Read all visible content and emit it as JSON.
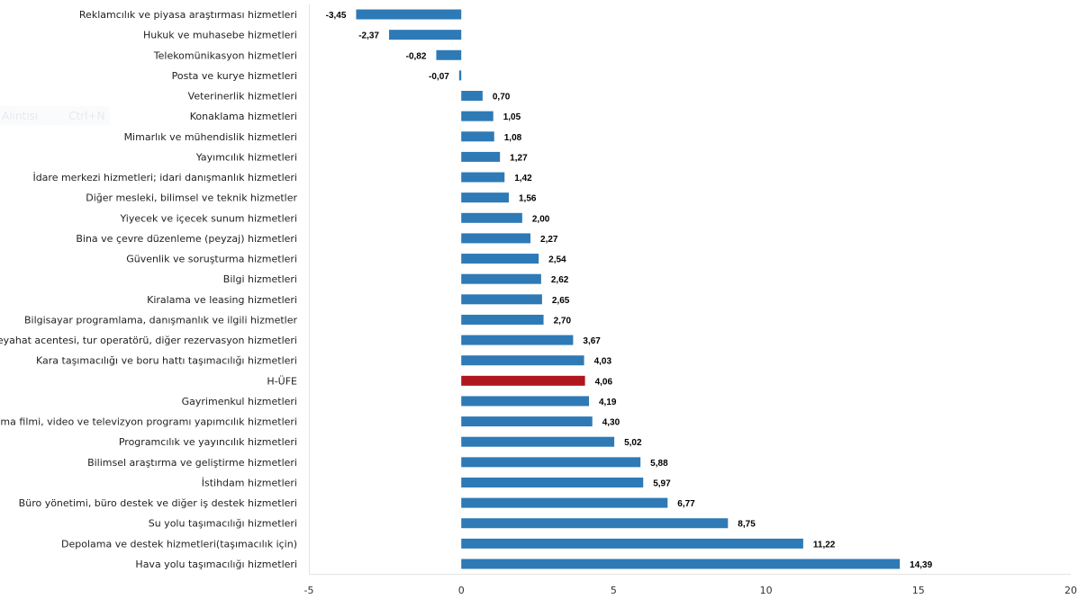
{
  "overlay": {
    "label": "Alıntısı",
    "shortcut": "Ctrl+N"
  },
  "chart_data": {
    "type": "bar",
    "orientation": "horizontal",
    "categories": [
      "Reklamcılık ve piyasa araştırması hizmetleri",
      "Hukuk ve muhasebe hizmetleri",
      "Telekomünikasyon hizmetleri",
      "Posta ve kurye hizmetleri",
      "Veterinerlik hizmetleri",
      "Konaklama hizmetleri",
      "Mimarlık ve mühendislik hizmetleri",
      "Yayımcılık hizmetleri",
      "İdare merkezi hizmetleri; idari danışmanlık hizmetleri",
      "Diğer mesleki, bilimsel ve teknik hizmetler",
      "Yiyecek ve içecek sunum hizmetleri",
      "Bina ve çevre düzenleme (peyzaj) hizmetleri",
      "Güvenlik ve soruşturma hizmetleri",
      "Bilgi hizmetleri",
      "Kiralama ve leasing hizmetleri",
      "Bilgisayar programlama, danışmanlık ve ilgili hizmetler",
      "Seyahat acentesi, tur operatörü, diğer rezervasyon hizmetleri",
      "Kara taşımacılığı ve boru hattı taşımacılığı hizmetleri",
      "H-ÜFE",
      "Gayrimenkul hizmetleri",
      "Sinema filmi, video ve televizyon programı yapımcılık hizmetleri",
      "Programcılık ve yayıncılık hizmetleri",
      "Bilimsel araştırma ve geliştirme hizmetleri",
      "İstihdam hizmetleri",
      "Büro yönetimi, büro destek ve diğer iş destek hizmetleri",
      "Su yolu taşımacılığı hizmetleri",
      "Depolama ve destek hizmetleri(taşımacılık için)",
      "Hava yolu taşımacılığı hizmetleri"
    ],
    "values": [
      -3.45,
      -2.37,
      -0.82,
      -0.07,
      0.7,
      1.05,
      1.08,
      1.27,
      1.42,
      1.56,
      2.0,
      2.27,
      2.54,
      2.62,
      2.65,
      2.7,
      3.67,
      4.03,
      4.06,
      4.19,
      4.3,
      5.02,
      5.88,
      5.97,
      6.77,
      8.75,
      11.22,
      14.39
    ],
    "data_labels": [
      "-3,45",
      "-2,37",
      "-0,82",
      "-0,07",
      "0,70",
      "1,05",
      "1,08",
      "1,27",
      "1,42",
      "1,56",
      "2,00",
      "2,27",
      "2,54",
      "2,62",
      "2,65",
      "2,70",
      "3,67",
      "4,03",
      "4,06",
      "4,19",
      "4,30",
      "5,02",
      "5,88",
      "5,97",
      "6,77",
      "8,75",
      "11,22",
      "14,39"
    ],
    "xlim": [
      -5,
      20
    ],
    "x_ticks": [
      "-5",
      "0",
      "5",
      "10",
      "15",
      "20"
    ],
    "x_tick_values": [
      -5,
      0,
      5,
      10,
      15,
      20
    ],
    "grid": false,
    "colors": {
      "default": "#2e7ab6",
      "highlight": "#b0161e"
    },
    "highlight_category": "H-ÜFE",
    "title": "",
    "xlabel": "",
    "ylabel": ""
  }
}
